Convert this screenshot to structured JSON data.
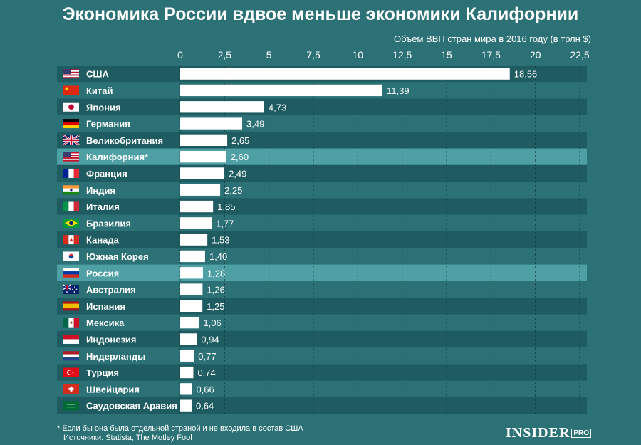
{
  "colors": {
    "background": "#2b7176",
    "row_dark": "#1e5c62",
    "row_light": "#2b7176",
    "row_highlight": "#4ea0a4",
    "bar": "#ffffff",
    "text": "#ffffff"
  },
  "footer": {
    "footnote": "* Если бы она была отдельной страной и не входила в состав США",
    "sources": "Источники: Statista, The Motley Fool",
    "logo_main": "INSIDER",
    "logo_pro": "PRO"
  },
  "chart_data": {
    "type": "bar",
    "orientation": "horizontal",
    "title": "Экономика России вдвое меньше экономики Калифорнии",
    "subtitle": "Объем ВВП стран мира в 2016 году (в трлн $)",
    "xlim": [
      0,
      22.5
    ],
    "ticks": [
      0,
      2.5,
      5,
      7.5,
      10,
      12.5,
      15,
      17.5,
      20,
      22.5
    ],
    "tick_labels": [
      "0",
      "2,5",
      "5",
      "7,5",
      "10",
      "12,5",
      "15",
      "17,5",
      "20",
      "22,5"
    ],
    "grid": "vertical dashed",
    "categories": [
      "США",
      "Китай",
      "Япония",
      "Германия",
      "Великобритания",
      "Калифорния*",
      "Франция",
      "Индия",
      "Италия",
      "Бразилия",
      "Канада",
      "Южная Корея",
      "Россия",
      "Австралия",
      "Испания",
      "Мексика",
      "Индонезия",
      "Нидерланды",
      "Турция",
      "Швейцария",
      "Саудовская Аравия"
    ],
    "values": [
      18.56,
      11.39,
      4.73,
      3.49,
      2.65,
      2.6,
      2.49,
      2.25,
      1.85,
      1.77,
      1.53,
      1.4,
      1.28,
      1.26,
      1.25,
      1.06,
      0.94,
      0.77,
      0.74,
      0.66,
      0.64
    ],
    "value_labels": [
      "18,56",
      "11,39",
      "4,73",
      "3,49",
      "2,65",
      "2,60",
      "2,49",
      "2,25",
      "1,85",
      "1,77",
      "1,53",
      "1,40",
      "1,28",
      "1,26",
      "1,25",
      "1,06",
      "0,94",
      "0,77",
      "0,74",
      "0,66",
      "0,64"
    ],
    "highlighted": [
      "Калифорния*",
      "Россия"
    ],
    "flags": [
      "us-flag-icon",
      "china-flag-icon",
      "japan-flag-icon",
      "germany-flag-icon",
      "uk-flag-icon",
      "us-flag-icon",
      "france-flag-icon",
      "india-flag-icon",
      "italy-flag-icon",
      "brazil-flag-icon",
      "canada-flag-icon",
      "south-korea-flag-icon",
      "russia-flag-icon",
      "australia-flag-icon",
      "spain-flag-icon",
      "mexico-flag-icon",
      "indonesia-flag-icon",
      "netherlands-flag-icon",
      "turkey-flag-icon",
      "switzerland-flag-icon",
      "saudi-arabia-flag-icon"
    ]
  }
}
